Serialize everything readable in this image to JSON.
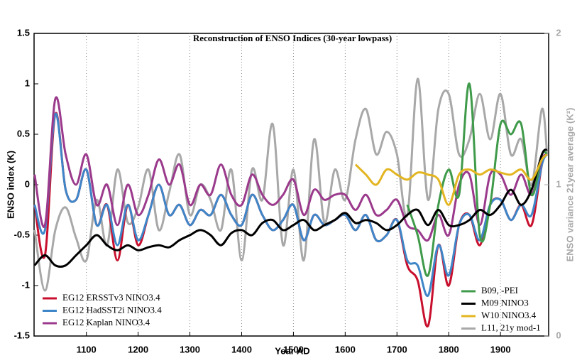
{
  "chart_data": {
    "type": "line",
    "title": "Reconstruction of ENSO Indices (30-year lowpass)",
    "xlabel": "Year AD",
    "ylabel": "ENSO index (K)",
    "y2label": "ENSO variance 21year average (K²)",
    "x": [
      1000,
      1020,
      1040,
      1060,
      1080,
      1100,
      1120,
      1140,
      1160,
      1180,
      1200,
      1220,
      1240,
      1260,
      1280,
      1300,
      1320,
      1340,
      1360,
      1380,
      1400,
      1420,
      1440,
      1460,
      1480,
      1500,
      1520,
      1540,
      1560,
      1580,
      1600,
      1620,
      1640,
      1660,
      1680,
      1700,
      1720,
      1740,
      1760,
      1780,
      1800,
      1820,
      1840,
      1860,
      1880,
      1900,
      1920,
      1940,
      1960,
      1980,
      1990
    ],
    "xlim": [
      999,
      1993
    ],
    "xticks": [
      1100,
      1200,
      1300,
      1400,
      1500,
      1600,
      1700,
      1800,
      1900
    ],
    "ylim": [
      -1.5,
      1.5
    ],
    "yticks": [
      -1.5,
      -1,
      -0.5,
      0,
      0.5,
      1,
      1.5
    ],
    "y2lim": [
      0,
      2
    ],
    "y2ticks": [
      0,
      1,
      2
    ],
    "grid": true,
    "series": [
      {
        "name": "EG12 ERSSTv3 NINO3.4",
        "color": "#c8102e",
        "values": [
          -0.2,
          -0.7,
          0.7,
          -0.05,
          -0.15,
          0.15,
          -0.4,
          -0.2,
          -0.75,
          -0.2,
          -0.6,
          -0.3,
          0.0,
          -0.3,
          -0.2,
          -0.4,
          -0.25,
          -0.3,
          -0.1,
          -0.3,
          -0.4,
          -0.1,
          -0.3,
          -0.45,
          -0.35,
          -0.2,
          -0.55,
          -0.3,
          -0.4,
          -0.35,
          -0.3,
          -0.45,
          -0.3,
          -0.55,
          -0.5,
          -0.35,
          -0.8,
          -0.95,
          -1.4,
          -0.6,
          -1.0,
          -0.4,
          -0.3,
          -0.6,
          -0.2,
          -0.15,
          -0.35,
          -0.2,
          -0.4,
          0.2,
          0.3
        ]
      },
      {
        "name": "EG12 HadSST2i NINO3.4",
        "color": "#3f86c8",
        "values": [
          -0.2,
          -0.45,
          0.7,
          -0.05,
          -0.15,
          0.15,
          -0.4,
          -0.2,
          -0.6,
          -0.2,
          -0.55,
          -0.3,
          0.0,
          -0.3,
          -0.2,
          -0.4,
          -0.25,
          -0.3,
          -0.1,
          -0.3,
          -0.4,
          -0.1,
          -0.3,
          -0.45,
          -0.35,
          -0.2,
          -0.55,
          -0.3,
          -0.4,
          -0.35,
          -0.3,
          -0.45,
          -0.3,
          -0.55,
          -0.5,
          -0.35,
          -0.75,
          -0.8,
          -1.1,
          -0.6,
          -0.9,
          -0.4,
          -0.3,
          -0.55,
          -0.2,
          -0.15,
          -0.35,
          -0.2,
          -0.3,
          0.2,
          0.3
        ]
      },
      {
        "name": "EG12 Kaplan NINO3.4",
        "color": "#9b3a8c",
        "values": [
          0.1,
          -0.4,
          0.85,
          0.3,
          0.0,
          0.3,
          -0.2,
          0.0,
          -0.4,
          0.0,
          -0.3,
          -0.1,
          0.25,
          0.0,
          0.2,
          -0.2,
          0.0,
          -0.1,
          0.2,
          -0.1,
          -0.2,
          0.1,
          -0.1,
          -0.2,
          -0.1,
          0.05,
          -0.3,
          -0.05,
          -0.15,
          -0.1,
          -0.1,
          -0.25,
          -0.1,
          -0.3,
          -0.25,
          -0.15,
          -0.4,
          -0.45,
          -0.55,
          -0.3,
          -0.5,
          0.0,
          0.1,
          -0.4,
          0.1,
          0.1,
          -0.1,
          0.1,
          -0.1,
          0.25,
          0.3
        ]
      },
      {
        "name": "B09, -PEI",
        "color": "#3f9a4a",
        "values": [
          null,
          null,
          null,
          null,
          null,
          null,
          null,
          null,
          null,
          null,
          null,
          null,
          null,
          null,
          null,
          null,
          null,
          null,
          null,
          null,
          null,
          null,
          null,
          null,
          null,
          null,
          null,
          null,
          null,
          null,
          null,
          null,
          null,
          null,
          null,
          null,
          -0.2,
          -0.5,
          -0.9,
          -0.2,
          0.15,
          -0.1,
          1.0,
          -0.5,
          -0.2,
          0.6,
          0.5,
          0.6,
          -0.1,
          0.3,
          0.3
        ]
      },
      {
        "name": "M09 NINO3",
        "color": "#000000",
        "values": [
          -0.8,
          -0.7,
          -0.8,
          -0.8,
          -0.7,
          -0.6,
          -0.5,
          -0.6,
          -0.65,
          -0.6,
          -0.65,
          -0.62,
          -0.6,
          -0.62,
          -0.55,
          -0.5,
          -0.45,
          -0.5,
          -0.6,
          -0.48,
          -0.45,
          -0.5,
          -0.38,
          -0.35,
          -0.45,
          -0.4,
          -0.35,
          -0.45,
          -0.4,
          -0.35,
          -0.28,
          -0.38,
          -0.35,
          -0.38,
          -0.45,
          -0.4,
          -0.3,
          -0.25,
          -0.4,
          -0.25,
          -0.4,
          -0.4,
          -0.35,
          -0.25,
          -0.3,
          -0.2,
          -0.05,
          -0.2,
          -0.05,
          0.3,
          0.35
        ]
      },
      {
        "name": "W10 NINO3.4",
        "color": "#e3b521",
        "values": [
          null,
          null,
          null,
          null,
          null,
          null,
          null,
          null,
          null,
          null,
          null,
          null,
          null,
          null,
          null,
          null,
          null,
          null,
          null,
          null,
          null,
          null,
          null,
          null,
          null,
          null,
          null,
          null,
          null,
          null,
          null,
          0.2,
          0.1,
          0.0,
          0.15,
          0.1,
          0.05,
          0.12,
          0.1,
          0.05,
          -0.2,
          0.1,
          0.15,
          0.1,
          0.15,
          0.12,
          0.1,
          0.15,
          0.05,
          0.25,
          0.3
        ]
      },
      {
        "name": "L11, 21y mod-1",
        "color": "#a8a8a8",
        "axis": "y2",
        "values": [
          0.7,
          0.3,
          0.7,
          0.85,
          0.65,
          0.5,
          0.9,
          0.6,
          1.1,
          0.75,
          0.85,
          1.1,
          0.7,
          0.95,
          1.2,
          0.8,
          1.0,
          0.9,
          0.7,
          1.1,
          0.5,
          1.1,
          0.9,
          1.4,
          0.6,
          1.1,
          0.5,
          1.3,
          0.75,
          1.1,
          0.9,
          1.3,
          1.5,
          1.2,
          1.35,
          1.2,
          0.8,
          1.7,
          0.9,
          1.5,
          1.6,
          1.2,
          1.3,
          1.6,
          1.3,
          1.6,
          1.2,
          1.3,
          1.0,
          1.5,
          1.2
        ]
      }
    ]
  }
}
